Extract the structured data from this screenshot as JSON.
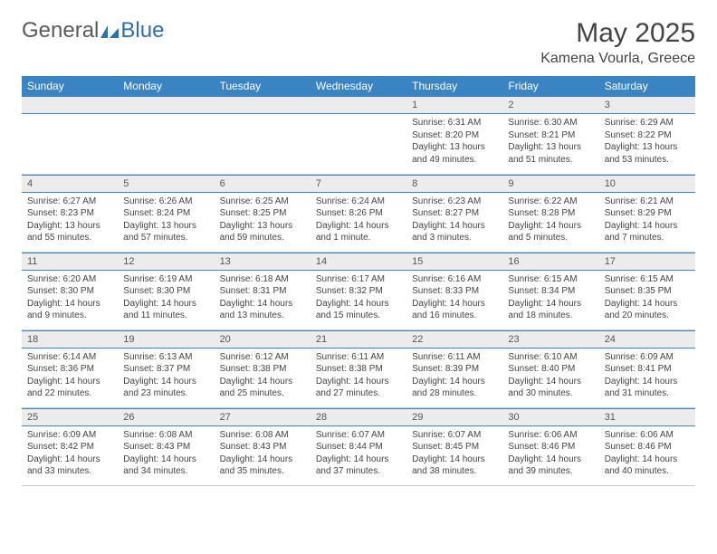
{
  "logo": {
    "general": "General",
    "blue": "Blue"
  },
  "title": "May 2025",
  "location": "Kamena Vourla, Greece",
  "colors": {
    "header_bg": "#3b84c4",
    "header_text": "#ffffff",
    "daynum_bg": "#ececec",
    "rule_color": "#3b84c4",
    "text_color": "#444444",
    "logo_general": "#5a5a5a",
    "logo_blue": "#2e6fae"
  },
  "typography": {
    "title_fontsize": 30,
    "location_fontsize": 16,
    "header_fontsize": 12,
    "daynum_fontsize": 11,
    "body_fontsize": 10
  },
  "weekday_headers": [
    "Sunday",
    "Monday",
    "Tuesday",
    "Wednesday",
    "Thursday",
    "Friday",
    "Saturday"
  ],
  "weeks": [
    [
      {
        "day": null
      },
      {
        "day": null
      },
      {
        "day": null
      },
      {
        "day": null
      },
      {
        "day": 1,
        "sunrise": "Sunrise: 6:31 AM",
        "sunset": "Sunset: 8:20 PM",
        "daylight1": "Daylight: 13 hours",
        "daylight2": "and 49 minutes."
      },
      {
        "day": 2,
        "sunrise": "Sunrise: 6:30 AM",
        "sunset": "Sunset: 8:21 PM",
        "daylight1": "Daylight: 13 hours",
        "daylight2": "and 51 minutes."
      },
      {
        "day": 3,
        "sunrise": "Sunrise: 6:29 AM",
        "sunset": "Sunset: 8:22 PM",
        "daylight1": "Daylight: 13 hours",
        "daylight2": "and 53 minutes."
      }
    ],
    [
      {
        "day": 4,
        "sunrise": "Sunrise: 6:27 AM",
        "sunset": "Sunset: 8:23 PM",
        "daylight1": "Daylight: 13 hours",
        "daylight2": "and 55 minutes."
      },
      {
        "day": 5,
        "sunrise": "Sunrise: 6:26 AM",
        "sunset": "Sunset: 8:24 PM",
        "daylight1": "Daylight: 13 hours",
        "daylight2": "and 57 minutes."
      },
      {
        "day": 6,
        "sunrise": "Sunrise: 6:25 AM",
        "sunset": "Sunset: 8:25 PM",
        "daylight1": "Daylight: 13 hours",
        "daylight2": "and 59 minutes."
      },
      {
        "day": 7,
        "sunrise": "Sunrise: 6:24 AM",
        "sunset": "Sunset: 8:26 PM",
        "daylight1": "Daylight: 14 hours",
        "daylight2": "and 1 minute."
      },
      {
        "day": 8,
        "sunrise": "Sunrise: 6:23 AM",
        "sunset": "Sunset: 8:27 PM",
        "daylight1": "Daylight: 14 hours",
        "daylight2": "and 3 minutes."
      },
      {
        "day": 9,
        "sunrise": "Sunrise: 6:22 AM",
        "sunset": "Sunset: 8:28 PM",
        "daylight1": "Daylight: 14 hours",
        "daylight2": "and 5 minutes."
      },
      {
        "day": 10,
        "sunrise": "Sunrise: 6:21 AM",
        "sunset": "Sunset: 8:29 PM",
        "daylight1": "Daylight: 14 hours",
        "daylight2": "and 7 minutes."
      }
    ],
    [
      {
        "day": 11,
        "sunrise": "Sunrise: 6:20 AM",
        "sunset": "Sunset: 8:30 PM",
        "daylight1": "Daylight: 14 hours",
        "daylight2": "and 9 minutes."
      },
      {
        "day": 12,
        "sunrise": "Sunrise: 6:19 AM",
        "sunset": "Sunset: 8:30 PM",
        "daylight1": "Daylight: 14 hours",
        "daylight2": "and 11 minutes."
      },
      {
        "day": 13,
        "sunrise": "Sunrise: 6:18 AM",
        "sunset": "Sunset: 8:31 PM",
        "daylight1": "Daylight: 14 hours",
        "daylight2": "and 13 minutes."
      },
      {
        "day": 14,
        "sunrise": "Sunrise: 6:17 AM",
        "sunset": "Sunset: 8:32 PM",
        "daylight1": "Daylight: 14 hours",
        "daylight2": "and 15 minutes."
      },
      {
        "day": 15,
        "sunrise": "Sunrise: 6:16 AM",
        "sunset": "Sunset: 8:33 PM",
        "daylight1": "Daylight: 14 hours",
        "daylight2": "and 16 minutes."
      },
      {
        "day": 16,
        "sunrise": "Sunrise: 6:15 AM",
        "sunset": "Sunset: 8:34 PM",
        "daylight1": "Daylight: 14 hours",
        "daylight2": "and 18 minutes."
      },
      {
        "day": 17,
        "sunrise": "Sunrise: 6:15 AM",
        "sunset": "Sunset: 8:35 PM",
        "daylight1": "Daylight: 14 hours",
        "daylight2": "and 20 minutes."
      }
    ],
    [
      {
        "day": 18,
        "sunrise": "Sunrise: 6:14 AM",
        "sunset": "Sunset: 8:36 PM",
        "daylight1": "Daylight: 14 hours",
        "daylight2": "and 22 minutes."
      },
      {
        "day": 19,
        "sunrise": "Sunrise: 6:13 AM",
        "sunset": "Sunset: 8:37 PM",
        "daylight1": "Daylight: 14 hours",
        "daylight2": "and 23 minutes."
      },
      {
        "day": 20,
        "sunrise": "Sunrise: 6:12 AM",
        "sunset": "Sunset: 8:38 PM",
        "daylight1": "Daylight: 14 hours",
        "daylight2": "and 25 minutes."
      },
      {
        "day": 21,
        "sunrise": "Sunrise: 6:11 AM",
        "sunset": "Sunset: 8:38 PM",
        "daylight1": "Daylight: 14 hours",
        "daylight2": "and 27 minutes."
      },
      {
        "day": 22,
        "sunrise": "Sunrise: 6:11 AM",
        "sunset": "Sunset: 8:39 PM",
        "daylight1": "Daylight: 14 hours",
        "daylight2": "and 28 minutes."
      },
      {
        "day": 23,
        "sunrise": "Sunrise: 6:10 AM",
        "sunset": "Sunset: 8:40 PM",
        "daylight1": "Daylight: 14 hours",
        "daylight2": "and 30 minutes."
      },
      {
        "day": 24,
        "sunrise": "Sunrise: 6:09 AM",
        "sunset": "Sunset: 8:41 PM",
        "daylight1": "Daylight: 14 hours",
        "daylight2": "and 31 minutes."
      }
    ],
    [
      {
        "day": 25,
        "sunrise": "Sunrise: 6:09 AM",
        "sunset": "Sunset: 8:42 PM",
        "daylight1": "Daylight: 14 hours",
        "daylight2": "and 33 minutes."
      },
      {
        "day": 26,
        "sunrise": "Sunrise: 6:08 AM",
        "sunset": "Sunset: 8:43 PM",
        "daylight1": "Daylight: 14 hours",
        "daylight2": "and 34 minutes."
      },
      {
        "day": 27,
        "sunrise": "Sunrise: 6:08 AM",
        "sunset": "Sunset: 8:43 PM",
        "daylight1": "Daylight: 14 hours",
        "daylight2": "and 35 minutes."
      },
      {
        "day": 28,
        "sunrise": "Sunrise: 6:07 AM",
        "sunset": "Sunset: 8:44 PM",
        "daylight1": "Daylight: 14 hours",
        "daylight2": "and 37 minutes."
      },
      {
        "day": 29,
        "sunrise": "Sunrise: 6:07 AM",
        "sunset": "Sunset: 8:45 PM",
        "daylight1": "Daylight: 14 hours",
        "daylight2": "and 38 minutes."
      },
      {
        "day": 30,
        "sunrise": "Sunrise: 6:06 AM",
        "sunset": "Sunset: 8:46 PM",
        "daylight1": "Daylight: 14 hours",
        "daylight2": "and 39 minutes."
      },
      {
        "day": 31,
        "sunrise": "Sunrise: 6:06 AM",
        "sunset": "Sunset: 8:46 PM",
        "daylight1": "Daylight: 14 hours",
        "daylight2": "and 40 minutes."
      }
    ]
  ]
}
